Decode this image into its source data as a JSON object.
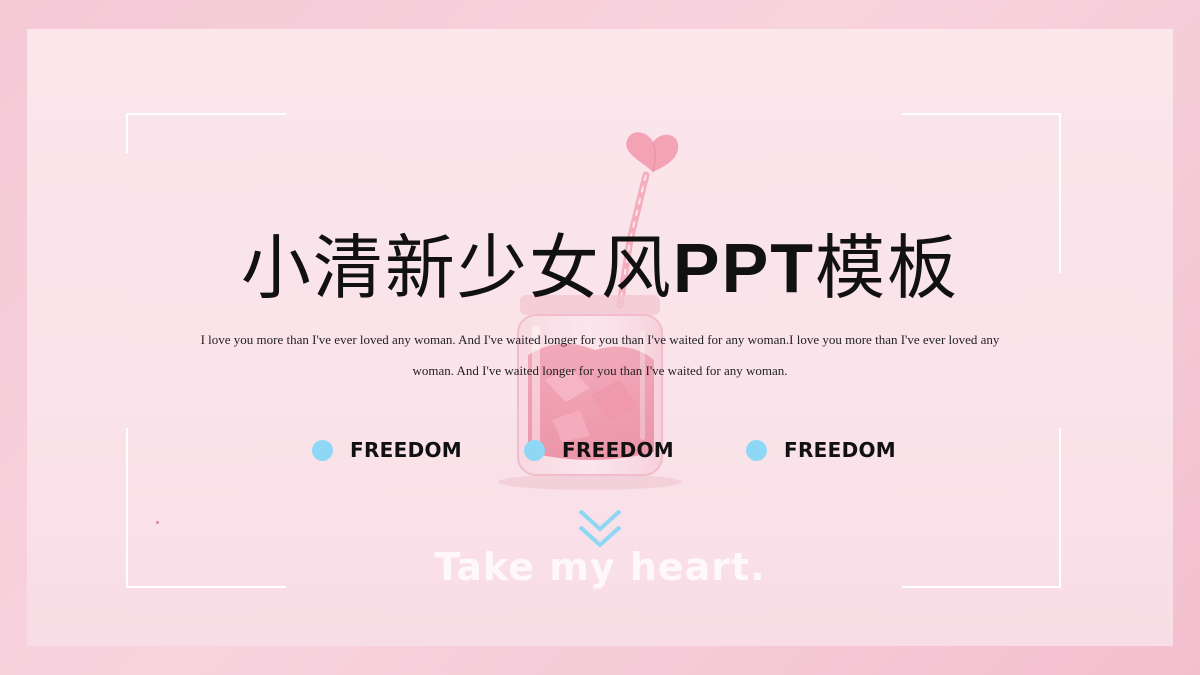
{
  "slide": {
    "title_cn_prefix": "小清新少女风",
    "title_latin": "PPT",
    "title_cn_suffix": "模板",
    "subtitle": "I love you more than I've ever loved any woman. And I've waited longer for you than I've waited for any woman.I love you more than I've ever loved any woman. And I've waited longer for you than I've waited for any woman.",
    "features": [
      {
        "label": "FREEDOM"
      },
      {
        "label": "FREEDOM"
      },
      {
        "label": "FREEDOM"
      }
    ],
    "tagline": "Take my heart."
  },
  "colors": {
    "accent_dot": "#8fd8f5",
    "chevron": "#8fd8f5",
    "frame": "#ffffff",
    "background": "#f5c8d6",
    "panel": "#fbe6ec"
  },
  "icons": {
    "feature_bullet": "circle-dot-icon",
    "scroll_down": "double-chevron-down-icon",
    "heart": "heart-icon"
  }
}
